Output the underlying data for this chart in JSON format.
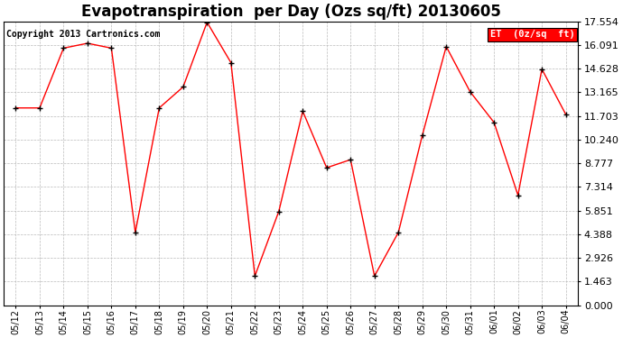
{
  "title": "Evapotranspiration  per Day (Ozs sq/ft) 20130605",
  "copyright": "Copyright 2013 Cartronics.com",
  "legend_label": "ET  (0z/sq  ft)",
  "dates": [
    "05/12",
    "05/13",
    "05/14",
    "05/15",
    "05/16",
    "05/17",
    "05/18",
    "05/19",
    "05/20",
    "05/21",
    "05/22",
    "05/23",
    "05/24",
    "05/25",
    "05/26",
    "05/27",
    "05/28",
    "05/29",
    "05/30",
    "05/31",
    "06/01",
    "06/02",
    "06/03",
    "06/04"
  ],
  "values": [
    12.2,
    12.2,
    15.9,
    16.2,
    15.9,
    4.5,
    12.2,
    13.5,
    17.5,
    15.0,
    1.8,
    5.8,
    12.0,
    8.5,
    9.0,
    1.8,
    4.5,
    10.5,
    16.0,
    13.2,
    11.3,
    6.8,
    14.6,
    11.8
  ],
  "y_ticks": [
    0.0,
    1.463,
    2.926,
    4.388,
    5.851,
    7.314,
    8.777,
    10.24,
    11.703,
    13.165,
    14.628,
    16.091,
    17.554
  ],
  "y_max": 17.554,
  "line_color": "red",
  "marker_color": "black",
  "bg_color": "#ffffff",
  "grid_color": "#bbbbbb",
  "legend_bg": "red",
  "legend_text_color": "white",
  "title_fontsize": 12,
  "copyright_fontsize": 7,
  "y_label_fontsize": 8,
  "x_label_fontsize": 7
}
